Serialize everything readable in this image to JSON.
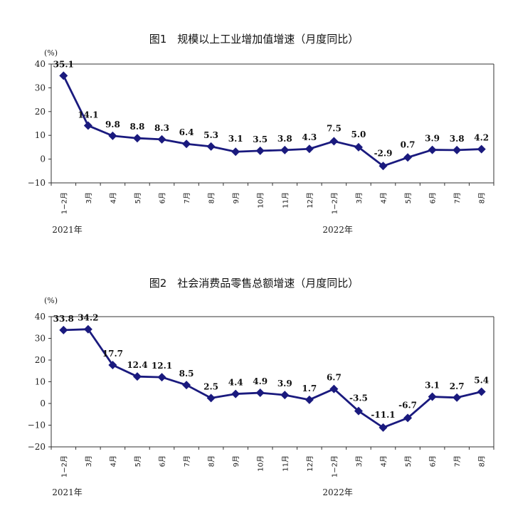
{
  "chart_data": [
    {
      "type": "line",
      "title": "图1　规模以上工业增加值增速（月度同比）",
      "ylabel": "(%)",
      "ylim": [
        -10,
        40
      ],
      "yticks": [
        -10,
        0,
        10,
        20,
        30,
        40
      ],
      "categories": [
        "1−2月",
        "3月",
        "4月",
        "5月",
        "6月",
        "7月",
        "8月",
        "9月",
        "10月",
        "11月",
        "12月",
        "1−2月",
        "3月",
        "4月",
        "5月",
        "6月",
        "7月",
        "8月"
      ],
      "year_labels": [
        {
          "label": "2021年",
          "index": 0
        },
        {
          "label": "2022年",
          "index": 11
        }
      ],
      "series": [
        {
          "values": [
            35.1,
            14.1,
            9.8,
            8.8,
            8.3,
            6.4,
            5.3,
            3.1,
            3.5,
            3.8,
            4.3,
            7.5,
            5.0,
            -2.9,
            0.7,
            3.9,
            3.8,
            4.2
          ]
        }
      ],
      "color": "#1a1a7e",
      "grid": false
    },
    {
      "type": "line",
      "title": "图2　社会消费品零售总额增速（月度同比）",
      "ylabel": "(%)",
      "ylim": [
        -20,
        40
      ],
      "yticks": [
        -20,
        -10,
        0,
        10,
        20,
        30,
        40
      ],
      "categories": [
        "1−2月",
        "3月",
        "4月",
        "5月",
        "6月",
        "7月",
        "8月",
        "9月",
        "10月",
        "11月",
        "12月",
        "1−2月",
        "3月",
        "4月",
        "5月",
        "6月",
        "7月",
        "8月"
      ],
      "year_labels": [
        {
          "label": "2021年",
          "index": 0
        },
        {
          "label": "2022年",
          "index": 11
        }
      ],
      "series": [
        {
          "values": [
            33.8,
            34.2,
            17.7,
            12.4,
            12.1,
            8.5,
            2.5,
            4.4,
            4.9,
            3.9,
            1.7,
            6.7,
            -3.5,
            -11.1,
            -6.7,
            3.1,
            2.7,
            5.4
          ]
        }
      ],
      "color": "#1a1a7e",
      "grid": false
    }
  ]
}
